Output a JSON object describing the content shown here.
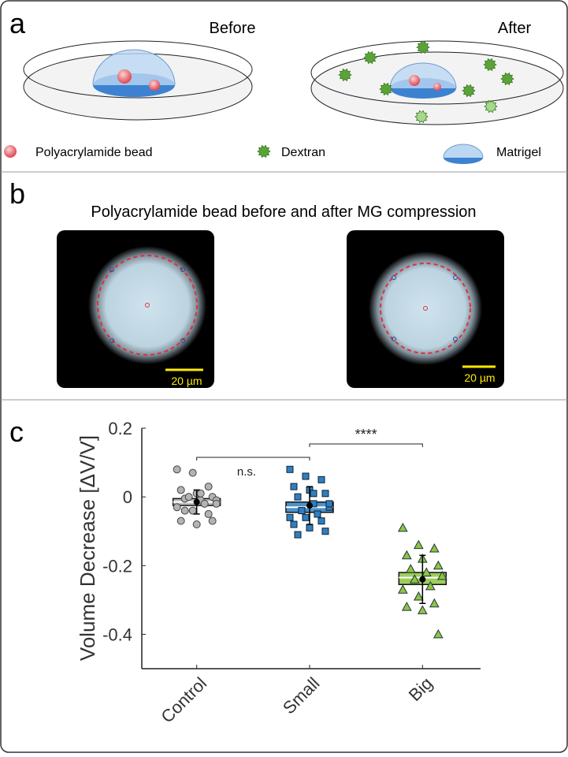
{
  "panel_a": {
    "label": "a",
    "before": "Before",
    "after": "After",
    "legend": [
      "Polyacrylamide bead",
      "Dextran",
      "Matrigel"
    ]
  },
  "panel_b": {
    "label": "b",
    "title": "Polyacrylamide bead before and after MG compression",
    "scale_bars": [
      "20 µm",
      "20 µm"
    ]
  },
  "panel_c": {
    "label": "c"
  },
  "chart_data": {
    "type": "box",
    "ylabel": "Volume Decrease [ΔV/V]",
    "categories": [
      "Control",
      "Small",
      "Big"
    ],
    "ylim": [
      -0.5,
      0.2
    ],
    "yticks": [
      -0.4,
      -0.2,
      0,
      0.2
    ],
    "annotations": [
      "n.s.",
      "****"
    ],
    "groups": [
      {
        "color": "#b3b3b3",
        "marker": "circle",
        "points": [
          0.08,
          0.07,
          0.03,
          0.02,
          0.01,
          0.0,
          -0.005,
          -0.01,
          -0.01,
          0.0,
          -0.02,
          -0.03,
          -0.04,
          -0.05,
          -0.07,
          -0.08,
          -0.07,
          -0.04,
          0.01,
          -0.02
        ],
        "q1": -0.025,
        "median": -0.015,
        "q3": -0.005,
        "mean": -0.015,
        "sd": 0.035
      },
      {
        "color": "#2e7fc1",
        "marker": "square",
        "points": [
          0.08,
          0.06,
          0.05,
          0.03,
          0.02,
          0.01,
          0.0,
          -0.02,
          -0.03,
          -0.04,
          -0.05,
          -0.06,
          -0.06,
          -0.07,
          -0.08,
          -0.09,
          -0.1,
          -0.11,
          0.01,
          -0.02
        ],
        "q1": -0.045,
        "median": -0.03,
        "q3": -0.015,
        "mean": -0.025,
        "sd": 0.055
      },
      {
        "color": "#8cc63f",
        "marker": "triangle",
        "points": [
          -0.09,
          -0.14,
          -0.15,
          -0.17,
          -0.18,
          -0.2,
          -0.21,
          -0.22,
          -0.23,
          -0.24,
          -0.26,
          -0.27,
          -0.29,
          -0.31,
          -0.32,
          -0.33,
          -0.4
        ],
        "q1": -0.255,
        "median": -0.235,
        "q3": -0.22,
        "mean": -0.24,
        "sd": 0.07
      }
    ]
  }
}
